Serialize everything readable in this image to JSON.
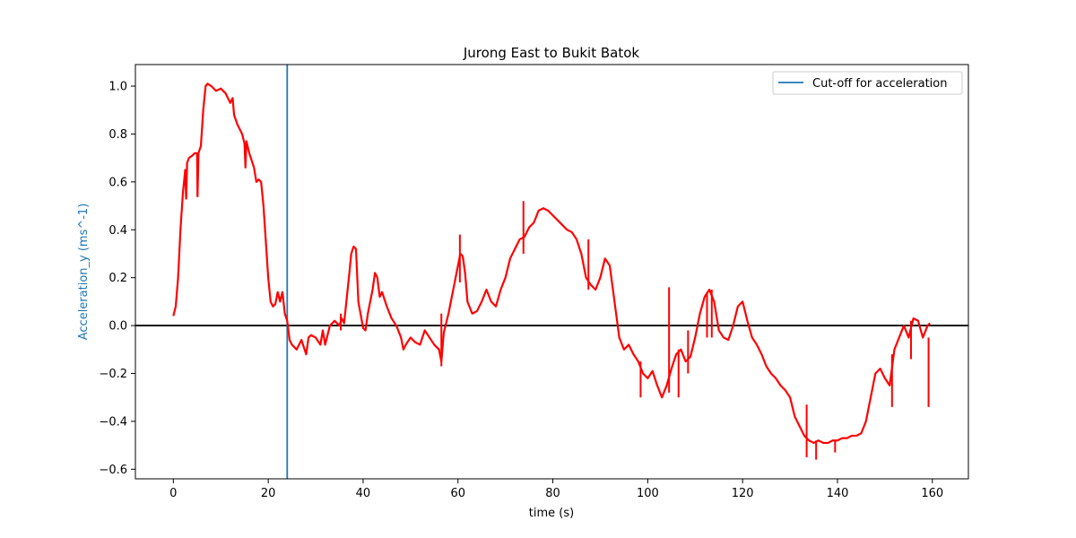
{
  "chart_data": {
    "type": "line",
    "title": "Jurong East to Bukit Batok",
    "xlabel": "time (s)",
    "ylabel": "Acceleration_y (ms^-1)",
    "xlim": [
      -8,
      167.6
    ],
    "ylim": [
      -0.64,
      1.09
    ],
    "xticks": [
      0,
      20,
      40,
      60,
      80,
      100,
      120,
      140,
      160
    ],
    "yticks": [
      -0.6,
      -0.4,
      -0.2,
      0.0,
      0.2,
      0.4,
      0.6,
      0.8,
      1.0
    ],
    "ytick_labels": [
      "−0.6",
      "−0.4",
      "−0.2",
      "0.0",
      "0.2",
      "0.4",
      "0.6",
      "0.8",
      "1.0"
    ],
    "grid": false,
    "legend": {
      "position": "top-right",
      "entries": [
        "Cut-off for acceleration"
      ]
    },
    "colors": {
      "series": "#ff0000",
      "cutoff": "#1f77b4",
      "zero_line": "#000000",
      "ylabel": "#1f77b4"
    },
    "cutoff_x": 24,
    "zero_line_y": 0,
    "series": [
      {
        "color": "#ff0000",
        "points": [
          [
            0,
            0.04
          ],
          [
            0.5,
            0.08
          ],
          [
            1,
            0.2
          ],
          [
            1.5,
            0.4
          ],
          [
            2,
            0.55
          ],
          [
            2.5,
            0.65
          ],
          [
            2.7,
            0.53
          ],
          [
            2.9,
            0.68
          ],
          [
            3.3,
            0.7
          ],
          [
            4,
            0.71
          ],
          [
            4.5,
            0.72
          ],
          [
            5,
            0.72
          ],
          [
            5.1,
            0.54
          ],
          [
            5.3,
            0.72
          ],
          [
            5.8,
            0.75
          ],
          [
            6.3,
            0.9
          ],
          [
            6.8,
            1.0
          ],
          [
            7.2,
            1.01
          ],
          [
            8,
            1.0
          ],
          [
            9,
            0.98
          ],
          [
            10,
            0.99
          ],
          [
            11,
            0.97
          ],
          [
            12,
            0.93
          ],
          [
            12.5,
            0.95
          ],
          [
            12.8,
            0.88
          ],
          [
            13.5,
            0.84
          ],
          [
            14.5,
            0.8
          ],
          [
            15,
            0.76
          ],
          [
            15.2,
            0.66
          ],
          [
            15.4,
            0.77
          ],
          [
            16,
            0.72
          ],
          [
            17,
            0.66
          ],
          [
            17.5,
            0.6
          ],
          [
            18,
            0.61
          ],
          [
            18.5,
            0.6
          ],
          [
            19,
            0.5
          ],
          [
            19.5,
            0.35
          ],
          [
            20,
            0.2
          ],
          [
            20.5,
            0.1
          ],
          [
            21,
            0.08
          ],
          [
            21.5,
            0.09
          ],
          [
            22,
            0.14
          ],
          [
            22.5,
            0.1
          ],
          [
            23,
            0.14
          ],
          [
            23.5,
            0.05
          ],
          [
            24,
            0.02
          ],
          [
            24.5,
            -0.06
          ],
          [
            25,
            -0.08
          ],
          [
            26,
            -0.1
          ],
          [
            27,
            -0.06
          ],
          [
            28,
            -0.12
          ],
          [
            28.5,
            -0.05
          ],
          [
            29,
            -0.04
          ],
          [
            30,
            -0.05
          ],
          [
            31,
            -0.08
          ],
          [
            31.5,
            -0.02
          ],
          [
            32,
            -0.08
          ],
          [
            33,
            0.0
          ],
          [
            34,
            0.02
          ],
          [
            35,
            0.0
          ],
          [
            35.5,
            0.03
          ],
          [
            36,
            0.01
          ],
          [
            37,
            0.2
          ],
          [
            37.5,
            0.3
          ],
          [
            38,
            0.33
          ],
          [
            38.5,
            0.32
          ],
          [
            39,
            0.1
          ],
          [
            40,
            -0.01
          ],
          [
            40.5,
            -0.02
          ],
          [
            41,
            0.05
          ],
          [
            42,
            0.15
          ],
          [
            42.5,
            0.22
          ],
          [
            43,
            0.2
          ],
          [
            43.5,
            0.12
          ],
          [
            44,
            0.14
          ],
          [
            45,
            0.08
          ],
          [
            46,
            0.03
          ],
          [
            47,
            0.0
          ],
          [
            48,
            -0.05
          ],
          [
            48.5,
            -0.1
          ],
          [
            49,
            -0.08
          ],
          [
            50,
            -0.05
          ],
          [
            51,
            -0.07
          ],
          [
            52,
            -0.08
          ],
          [
            53,
            -0.02
          ],
          [
            54,
            -0.05
          ],
          [
            55,
            -0.08
          ],
          [
            56,
            -0.1
          ],
          [
            56.5,
            -0.15
          ],
          [
            57,
            -0.03
          ],
          [
            58,
            0.05
          ],
          [
            59,
            0.15
          ],
          [
            60,
            0.25
          ],
          [
            60.5,
            0.3
          ],
          [
            61,
            0.29
          ],
          [
            61.5,
            0.22
          ],
          [
            62,
            0.1
          ],
          [
            63,
            0.05
          ],
          [
            64,
            0.06
          ],
          [
            65,
            0.1
          ],
          [
            66,
            0.15
          ],
          [
            67,
            0.1
          ],
          [
            68,
            0.08
          ],
          [
            69,
            0.15
          ],
          [
            70,
            0.2
          ],
          [
            71,
            0.28
          ],
          [
            72,
            0.32
          ],
          [
            73,
            0.36
          ],
          [
            74,
            0.37
          ],
          [
            75,
            0.41
          ],
          [
            76,
            0.43
          ],
          [
            77,
            0.48
          ],
          [
            78,
            0.49
          ],
          [
            79,
            0.48
          ],
          [
            80,
            0.46
          ],
          [
            81,
            0.44
          ],
          [
            82,
            0.42
          ],
          [
            83,
            0.4
          ],
          [
            84,
            0.39
          ],
          [
            85,
            0.36
          ],
          [
            86,
            0.3
          ],
          [
            87,
            0.2
          ],
          [
            88,
            0.17
          ],
          [
            89,
            0.15
          ],
          [
            90,
            0.2
          ],
          [
            91,
            0.28
          ],
          [
            92,
            0.25
          ],
          [
            93,
            0.1
          ],
          [
            94,
            -0.05
          ],
          [
            95,
            -0.1
          ],
          [
            96,
            -0.08
          ],
          [
            97,
            -0.12
          ],
          [
            98,
            -0.15
          ],
          [
            99,
            -0.2
          ],
          [
            100,
            -0.22
          ],
          [
            101,
            -0.19
          ],
          [
            102,
            -0.25
          ],
          [
            103,
            -0.3
          ],
          [
            104,
            -0.25
          ],
          [
            105,
            -0.18
          ],
          [
            106,
            -0.12
          ],
          [
            107,
            -0.1
          ],
          [
            108,
            -0.15
          ],
          [
            109,
            -0.13
          ],
          [
            110,
            -0.05
          ],
          [
            111,
            0.05
          ],
          [
            112,
            0.12
          ],
          [
            113,
            0.15
          ],
          [
            114,
            0.1
          ],
          [
            115,
            -0.02
          ],
          [
            116,
            -0.05
          ],
          [
            117,
            -0.06
          ],
          [
            118,
            0.0
          ],
          [
            119,
            0.08
          ],
          [
            120,
            0.1
          ],
          [
            121,
            0.02
          ],
          [
            122,
            -0.05
          ],
          [
            123,
            -0.08
          ],
          [
            124,
            -0.12
          ],
          [
            125,
            -0.17
          ],
          [
            126,
            -0.2
          ],
          [
            127,
            -0.22
          ],
          [
            128,
            -0.25
          ],
          [
            129,
            -0.27
          ],
          [
            130,
            -0.3
          ],
          [
            131,
            -0.38
          ],
          [
            132,
            -0.42
          ],
          [
            133,
            -0.46
          ],
          [
            134,
            -0.48
          ],
          [
            135,
            -0.49
          ],
          [
            136,
            -0.48
          ],
          [
            137,
            -0.49
          ],
          [
            138,
            -0.49
          ],
          [
            139,
            -0.48
          ],
          [
            140,
            -0.48
          ],
          [
            141,
            -0.47
          ],
          [
            142,
            -0.47
          ],
          [
            143,
            -0.46
          ],
          [
            144,
            -0.46
          ],
          [
            145,
            -0.45
          ],
          [
            146,
            -0.4
          ],
          [
            147,
            -0.3
          ],
          [
            148,
            -0.2
          ],
          [
            149,
            -0.18
          ],
          [
            150,
            -0.22
          ],
          [
            151,
            -0.25
          ],
          [
            152,
            -0.1
          ],
          [
            153,
            -0.05
          ],
          [
            154,
            0.0
          ],
          [
            155,
            -0.05
          ],
          [
            156,
            0.03
          ],
          [
            157,
            0.02
          ],
          [
            158,
            -0.05
          ],
          [
            159,
            0.0
          ],
          [
            159.5,
            0.01
          ]
        ]
      }
    ],
    "spikes": [
      [
        5.1,
        0.72,
        0.54
      ],
      [
        24.0,
        0.1,
        0.1
      ],
      [
        35.3,
        0.05,
        -0.02
      ],
      [
        56.5,
        0.05,
        -0.17
      ],
      [
        60.4,
        0.38,
        0.18
      ],
      [
        73.8,
        0.52,
        0.3
      ],
      [
        87.5,
        0.36,
        0.15
      ],
      [
        98.5,
        -0.15,
        -0.3
      ],
      [
        104.5,
        0.16,
        -0.28
      ],
      [
        106.5,
        -0.1,
        -0.3
      ],
      [
        108.5,
        -0.02,
        -0.2
      ],
      [
        112.5,
        0.14,
        -0.05
      ],
      [
        113.5,
        0.15,
        -0.05
      ],
      [
        133.5,
        -0.33,
        -0.55
      ],
      [
        135.5,
        -0.48,
        -0.56
      ],
      [
        139.5,
        -0.48,
        -0.53
      ],
      [
        151.5,
        -0.12,
        -0.34
      ],
      [
        155.5,
        0.02,
        -0.14
      ],
      [
        159.2,
        -0.05,
        -0.34
      ]
    ]
  }
}
